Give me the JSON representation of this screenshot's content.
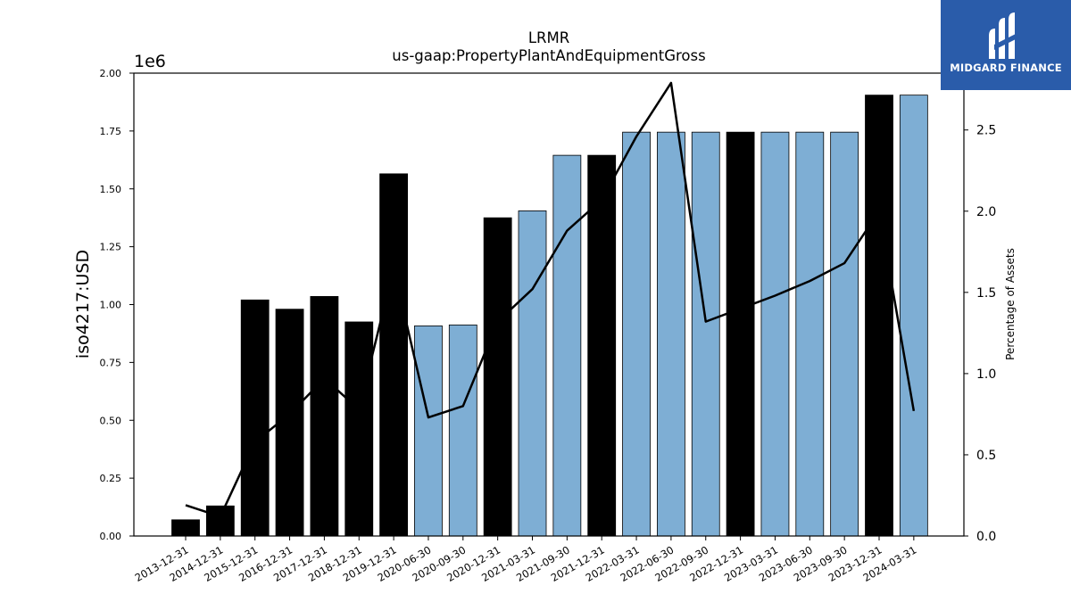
{
  "chart_data": {
    "type": "bar",
    "title": "LRMR",
    "subtitle": "us-gaap:PropertyPlantAndEquipmentGross",
    "ylabel": "iso4217:USD",
    "y2label": "Percentage of Assets",
    "y_offset_label": "1e6",
    "ylim": [
      0,
      2000000
    ],
    "y2lim": [
      0,
      2.85
    ],
    "yticks": [
      "0.00",
      "0.25",
      "0.50",
      "0.75",
      "1.00",
      "1.25",
      "1.50",
      "1.75",
      "2.00"
    ],
    "y2ticks": [
      "0.0",
      "0.5",
      "1.0",
      "1.5",
      "2.0",
      "2.5"
    ],
    "categories": [
      "2013-12-31",
      "2014-12-31",
      "2015-12-31",
      "2016-12-31",
      "2017-12-31",
      "2018-12-31",
      "2019-12-31",
      "2020-06-30",
      "2020-09-30",
      "2020-12-31",
      "2021-03-31",
      "2021-09-30",
      "2021-12-31",
      "2022-03-31",
      "2022-06-30",
      "2022-09-30",
      "2022-12-31",
      "2023-03-31",
      "2023-06-30",
      "2023-09-30",
      "2023-12-31",
      "2024-03-31"
    ],
    "series": [
      {
        "type": "bar",
        "values": [
          70000,
          130000,
          1020000,
          980000,
          1035000,
          925000,
          1565000,
          908000,
          912000,
          1375000,
          1405000,
          1645000,
          1645000,
          1745000,
          1745000,
          1745000,
          1745000,
          1745000,
          1745000,
          1745000,
          1905000,
          1905000
        ],
        "period": [
          "annual",
          "annual",
          "annual",
          "annual",
          "annual",
          "annual",
          "annual",
          "quarterly",
          "quarterly",
          "annual",
          "quarterly",
          "quarterly",
          "annual",
          "quarterly",
          "quarterly",
          "quarterly",
          "annual",
          "quarterly",
          "quarterly",
          "quarterly",
          "annual",
          "quarterly"
        ]
      },
      {
        "type": "line",
        "axis": "right",
        "values": [
          0.19,
          0.12,
          0.58,
          0.75,
          0.97,
          0.78,
          1.65,
          0.73,
          0.8,
          1.32,
          1.52,
          1.88,
          2.07,
          2.46,
          2.79,
          1.32,
          1.4,
          1.48,
          1.57,
          1.68,
          2.0,
          0.77
        ]
      }
    ],
    "colors": {
      "annual_bar": "#000000",
      "quarterly_bar": "#7eaed4",
      "line": "#000000"
    },
    "grid": false,
    "legend": "none"
  },
  "logo": {
    "text": "MIDGARD FINANCE",
    "background": "#2a5caa"
  }
}
